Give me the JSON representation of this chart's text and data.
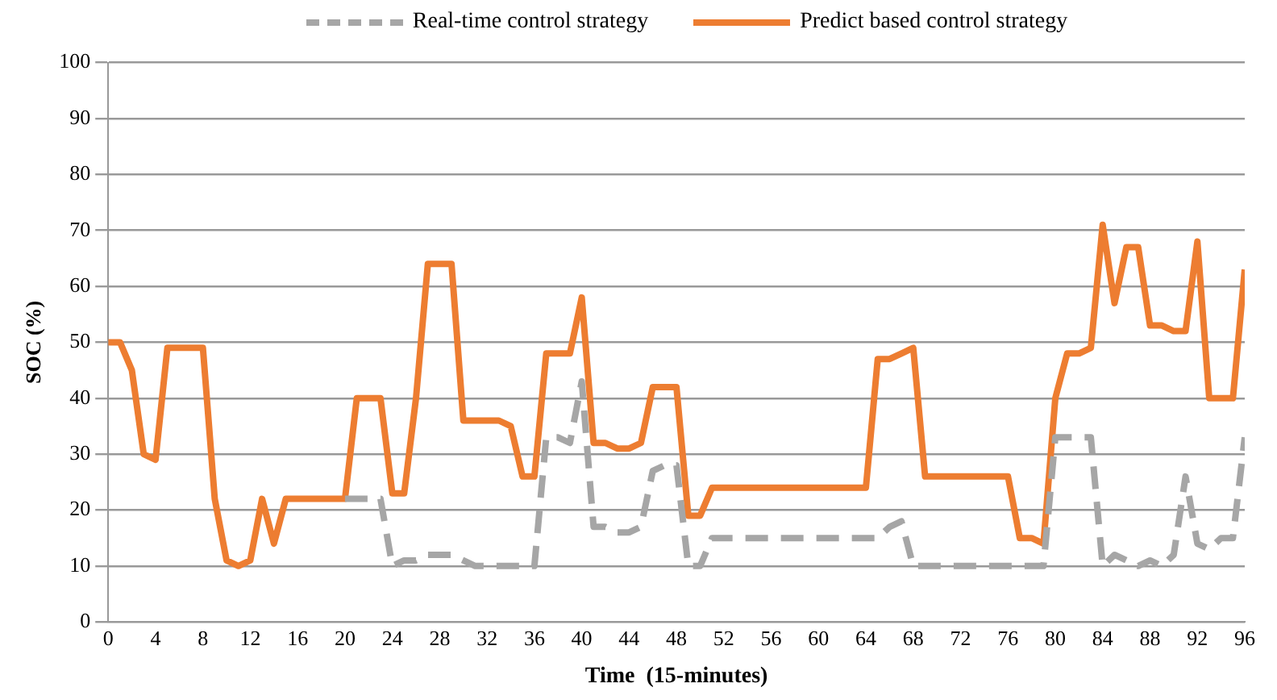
{
  "chart_data": {
    "type": "line",
    "xlabel": "Time  (15-minutes)",
    "ylabel": "SOC (%)",
    "x": [
      0,
      1,
      2,
      3,
      4,
      5,
      6,
      7,
      8,
      9,
      10,
      11,
      12,
      13,
      14,
      15,
      16,
      17,
      18,
      19,
      20,
      21,
      22,
      23,
      24,
      25,
      26,
      27,
      28,
      29,
      30,
      31,
      32,
      33,
      34,
      35,
      36,
      37,
      38,
      39,
      40,
      41,
      42,
      43,
      44,
      45,
      46,
      47,
      48,
      49,
      50,
      51,
      52,
      53,
      54,
      55,
      56,
      57,
      58,
      59,
      60,
      61,
      62,
      63,
      64,
      65,
      66,
      67,
      68,
      69,
      70,
      71,
      72,
      73,
      74,
      75,
      76,
      77,
      78,
      79,
      80,
      81,
      82,
      83,
      84,
      85,
      86,
      87,
      88,
      89,
      90,
      91,
      92,
      93,
      94,
      95,
      96
    ],
    "xlim": [
      0,
      96
    ],
    "xticks": [
      0,
      4,
      8,
      12,
      16,
      20,
      24,
      28,
      32,
      36,
      40,
      44,
      48,
      52,
      56,
      60,
      64,
      68,
      72,
      76,
      80,
      84,
      88,
      92,
      96
    ],
    "ylim": [
      0,
      100
    ],
    "yticks": [
      0,
      10,
      20,
      30,
      40,
      50,
      60,
      70,
      80,
      90,
      100
    ],
    "grid": "y",
    "legend": "top",
    "marker": "none",
    "series": [
      {
        "name": "Real-time control strategy",
        "color": "#a6a6a6",
        "line_style": "dashed",
        "values": [
          null,
          null,
          null,
          null,
          null,
          null,
          null,
          null,
          null,
          null,
          null,
          null,
          null,
          null,
          null,
          null,
          null,
          null,
          null,
          null,
          22,
          22,
          22,
          22,
          10,
          11,
          11,
          12,
          12,
          12,
          11,
          10,
          10,
          10,
          10,
          10,
          10,
          33,
          33,
          32,
          43,
          17,
          17,
          16,
          16,
          17,
          27,
          28,
          28,
          10,
          10,
          15,
          15,
          15,
          15,
          15,
          15,
          15,
          15,
          15,
          15,
          15,
          15,
          15,
          15,
          15,
          17,
          18,
          10,
          10,
          10,
          10,
          10,
          10,
          10,
          10,
          10,
          10,
          10,
          10,
          33,
          33,
          33,
          33,
          10,
          12,
          11,
          10,
          11,
          10,
          12,
          26,
          14,
          13,
          15,
          15,
          33
        ]
      },
      {
        "name": "Predict based control strategy",
        "color": "#ed7d31",
        "line_style": "solid",
        "values": [
          50,
          50,
          45,
          30,
          29,
          49,
          49,
          49,
          49,
          22,
          11,
          10,
          11,
          22,
          14,
          22,
          22,
          22,
          22,
          22,
          22,
          40,
          40,
          40,
          23,
          23,
          40,
          64,
          64,
          64,
          36,
          36,
          36,
          36,
          35,
          26,
          26,
          48,
          48,
          48,
          58,
          32,
          32,
          31,
          31,
          32,
          42,
          42,
          42,
          19,
          19,
          24,
          24,
          24,
          24,
          24,
          24,
          24,
          24,
          24,
          24,
          24,
          24,
          24,
          24,
          47,
          47,
          48,
          49,
          26,
          26,
          26,
          26,
          26,
          26,
          26,
          26,
          15,
          15,
          14,
          40,
          48,
          48,
          49,
          71,
          57,
          67,
          67,
          53,
          53,
          52,
          52,
          68,
          40,
          40,
          40,
          63
        ]
      }
    ]
  }
}
